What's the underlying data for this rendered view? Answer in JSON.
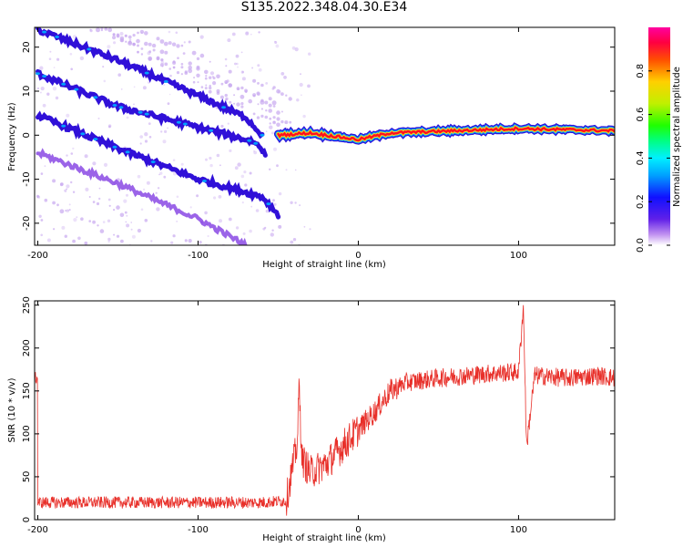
{
  "title": "S135.2022.348.04.30.E34",
  "colors": {
    "background": "#ffffff",
    "snr_line": "#e8302a",
    "track_outer": "#3010d8",
    "track_inner": "#00a0ff",
    "faint_track": "#c8a8f0",
    "flat_line_red": "#ff1020",
    "flat_line_yellow": "#f0e020"
  },
  "chart_data": [
    {
      "type": "heatmap",
      "name": "spectrogram",
      "xlabel": "Height of straight line (km)",
      "ylabel": "Frequency (Hz)",
      "xlim": [
        -202,
        160
      ],
      "ylim": [
        -25,
        24.5
      ],
      "xticks": [
        -200,
        -100,
        0,
        100
      ],
      "yticks": [
        -20,
        -10,
        0,
        10,
        20
      ],
      "tracks": [
        {
          "label": "upper track",
          "points": [
            [
              -200,
              24
            ],
            [
              -150,
              17
            ],
            [
              -100,
              9
            ],
            [
              -70,
              4
            ],
            [
              -60,
              0
            ]
          ]
        },
        {
          "label": "middle-upper track",
          "points": [
            [
              -200,
              14
            ],
            [
              -150,
              6.5
            ],
            [
              -100,
              1.8
            ],
            [
              -65,
              -1.5
            ],
            [
              -58,
              -4
            ]
          ]
        },
        {
          "label": "middle-lower track",
          "points": [
            [
              -200,
              4.5
            ],
            [
              -150,
              -3
            ],
            [
              -100,
              -10
            ],
            [
              -60,
              -14
            ],
            [
              -50,
              -18
            ]
          ]
        },
        {
          "label": "lower track",
          "points": [
            [
              -200,
              -4
            ],
            [
              -150,
              -11
            ],
            [
              -100,
              -19
            ],
            [
              -70,
              -25
            ]
          ]
        },
        {
          "label": "flat track",
          "points": [
            [
              -50,
              0
            ],
            [
              -30,
              0.5
            ],
            [
              0,
              -1
            ],
            [
              20,
              0.5
            ],
            [
              100,
              1.5
            ],
            [
              160,
              1
            ]
          ]
        }
      ],
      "colorbar": {
        "label": "Normalized spectral amplitude",
        "range": [
          0.0,
          1.0
        ],
        "ticks": [
          "0.0",
          "0.2",
          "0.4",
          "0.6",
          "0.8"
        ],
        "tick_values": [
          0.0,
          0.2,
          0.4,
          0.6,
          0.8
        ]
      }
    },
    {
      "type": "line",
      "name": "snr",
      "xlabel": "Height of straight line (km)",
      "ylabel": "SNR (10 * v/v)",
      "xlim": [
        -202,
        160
      ],
      "ylim": [
        0,
        255
      ],
      "xticks": [
        -200,
        -100,
        0,
        100
      ],
      "yticks": [
        0,
        50,
        100,
        150,
        200,
        250
      ],
      "series": [
        {
          "x": [
            -200,
            -150,
            -100,
            -60,
            -45,
            -38,
            -37,
            -35,
            -30,
            -20,
            -10,
            0,
            10,
            20,
            30,
            50,
            80,
            100,
            103,
            105,
            110,
            130,
            150,
            160
          ],
          "y": [
            20,
            20,
            20,
            20,
            22,
            90,
            155,
            70,
            55,
            65,
            85,
            105,
            125,
            150,
            160,
            165,
            170,
            172,
            250,
            85,
            168,
            165,
            168,
            165
          ]
        }
      ]
    }
  ]
}
